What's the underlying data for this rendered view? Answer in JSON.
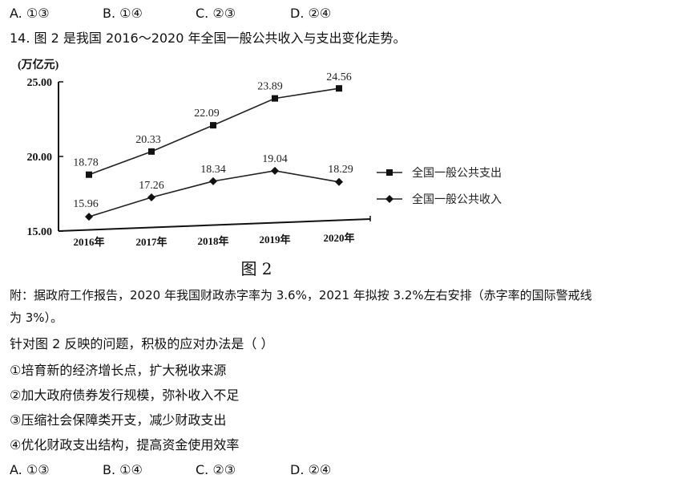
{
  "top_options": [
    {
      "letter": "A.",
      "value": "①③"
    },
    {
      "letter": "B.",
      "value": "①④"
    },
    {
      "letter": "C.",
      "value": "②③"
    },
    {
      "letter": "D.",
      "value": "②④"
    }
  ],
  "question_title": "14.  图 2 是我国 2016～2020 年全国一般公共收入与支出变化走势。",
  "chart_data": {
    "type": "line",
    "y_unit": "(万亿元)",
    "y_ticks": [
      "25.00",
      "20.00",
      "15.00"
    ],
    "ylim": [
      15,
      25
    ],
    "categories": [
      "2016年",
      "2017年",
      "2018年",
      "2019年",
      "2020年"
    ],
    "series": [
      {
        "name": "全国一般公共支出",
        "marker": "square",
        "values": [
          18.78,
          20.33,
          22.09,
          23.89,
          24.56
        ],
        "labels": [
          "18.78",
          "20.33",
          "22.09",
          "23.89",
          "24.56"
        ]
      },
      {
        "name": "全国一般公共收入",
        "marker": "diamond",
        "values": [
          15.96,
          17.26,
          18.34,
          19.04,
          18.29
        ],
        "labels": [
          "15.96",
          "17.26",
          "18.34",
          "19.04",
          "18.29"
        ]
      }
    ],
    "caption": "图 2"
  },
  "note_line1": "附：据政府工作报告，2020 年我国财政赤字率为 3.6%，2021 年拟按 3.2%左右安排（赤字率的国际警戒线",
  "note_line2": "为 3%）。",
  "prompt": "针对图 2 反映的问题，积极的应对办法是（        ）",
  "statements": [
    "①培育新的经济增长点，扩大税收来源",
    "②加大政府债券发行规模，弥补收入不足",
    "③压缩社会保障类开支，减少财政支出",
    "④优化财政支出结构，提高资金使用效率"
  ],
  "bottom_options": [
    {
      "letter": "A.",
      "value": "①③"
    },
    {
      "letter": "B.",
      "value": "①④"
    },
    {
      "letter": "C.",
      "value": "②③"
    },
    {
      "letter": "D.",
      "value": "②④"
    }
  ]
}
